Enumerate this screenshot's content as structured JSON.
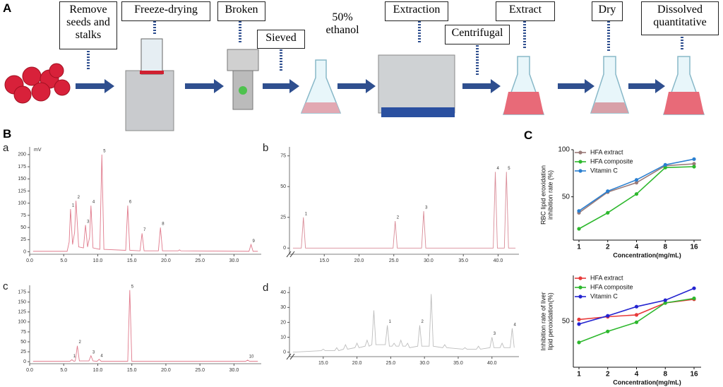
{
  "panel_labels": [
    "A",
    "B",
    "C"
  ],
  "workflow": {
    "steps": [
      "Remove seeds and stalks",
      "Freeze-drying",
      "Broken",
      "Sieved",
      "50% ethanol",
      "Extraction",
      "Centrifugal",
      "Extract",
      "Dry",
      "Dissolved quantitative"
    ]
  },
  "chart_data": [
    {
      "type": "line",
      "panel": "a",
      "y_unit": "mV",
      "x": [
        0.5,
        5.5,
        5.8,
        6.0,
        6.3,
        6.6,
        6.8,
        7.2,
        7.9,
        8.2,
        8.5,
        8.8,
        9.0,
        9.3,
        10.3,
        10.6,
        10.9,
        14.1,
        14.4,
        14.7,
        16.2,
        16.5,
        16.8,
        18.9,
        19.2,
        19.5,
        21.8,
        22.0,
        22.2,
        32.2,
        32.5,
        32.8,
        33.5
      ],
      "series": [
        {
          "color": "#e07a8c",
          "values": [
            1,
            1,
            20,
            88,
            15,
            40,
            105,
            10,
            8,
            55,
            10,
            30,
            95,
            8,
            5,
            200,
            5,
            3,
            95,
            3,
            2,
            38,
            2,
            2,
            50,
            2,
            2,
            4,
            2,
            1,
            15,
            1,
            1
          ]
        }
      ],
      "xlim": [
        0,
        34
      ],
      "xticks": [
        {
          "value": 0,
          "label": "0.0"
        },
        {
          "value": 5,
          "label": "5.0"
        },
        {
          "value": 10,
          "label": "10.0"
        },
        {
          "value": 15,
          "label": "15.0"
        },
        {
          "value": 20,
          "label": "20.0"
        },
        {
          "value": 25,
          "label": "25.0"
        },
        {
          "value": 30,
          "label": "30.0"
        }
      ],
      "ylim": [
        -5,
        210
      ],
      "yticks": [
        0,
        25,
        50,
        75,
        100,
        125,
        150,
        175,
        200
      ],
      "annotations": [
        {
          "x": 6.0,
          "y": 88,
          "text": "1"
        },
        {
          "x": 6.8,
          "y": 105,
          "text": "2"
        },
        {
          "x": 8.2,
          "y": 55,
          "text": "3"
        },
        {
          "x": 9.0,
          "y": 95,
          "text": "4"
        },
        {
          "x": 10.6,
          "y": 200,
          "text": "5"
        },
        {
          "x": 14.4,
          "y": 95,
          "text": "6"
        },
        {
          "x": 16.5,
          "y": 38,
          "text": "7"
        },
        {
          "x": 19.2,
          "y": 50,
          "text": "8"
        },
        {
          "x": 32.5,
          "y": 15,
          "text": "9"
        }
      ]
    },
    {
      "type": "line",
      "panel": "b",
      "axis_break": true,
      "x": [
        10.5,
        11.7,
        12.0,
        12.3,
        24.9,
        25.2,
        25.5,
        29.0,
        29.3,
        29.6,
        39.3,
        39.6,
        39.9,
        40.9,
        41.2,
        41.5,
        42.5
      ],
      "series": [
        {
          "color": "#d98c98",
          "values": [
            0,
            0,
            25,
            0,
            0,
            22,
            0,
            0,
            30,
            0,
            0,
            62,
            0,
            0,
            62,
            0,
            0
          ]
        }
      ],
      "xlim": [
        10,
        43
      ],
      "xticks": [
        {
          "value": 15,
          "label": "15.0"
        },
        {
          "value": 20,
          "label": "20.0"
        },
        {
          "value": 25,
          "label": "25.0"
        },
        {
          "value": 30,
          "label": "30.0"
        },
        {
          "value": 35,
          "label": "35.0"
        },
        {
          "value": 40,
          "label": "40.0"
        }
      ],
      "ylim": [
        -5,
        80
      ],
      "yticks": [
        0,
        25,
        50,
        75
      ],
      "annotations": [
        {
          "x": 12.0,
          "y": 25,
          "text": "1"
        },
        {
          "x": 25.2,
          "y": 22,
          "text": "2"
        },
        {
          "x": 29.3,
          "y": 30,
          "text": "3"
        },
        {
          "x": 39.6,
          "y": 62,
          "text": "4"
        },
        {
          "x": 41.2,
          "y": 62,
          "text": "5"
        }
      ]
    },
    {
      "type": "line",
      "panel": "c",
      "x": [
        0.5,
        5.9,
        6.2,
        6.5,
        6.7,
        7.0,
        7.3,
        8.7,
        9.0,
        9.3,
        9.9,
        10.2,
        10.5,
        14.4,
        14.7,
        15.0,
        31.7,
        32.0,
        32.3,
        33.5
      ],
      "series": [
        {
          "color": "#e07a8c",
          "values": [
            1,
            1,
            5,
            1,
            2,
            40,
            2,
            2,
            15,
            2,
            1,
            6,
            1,
            1,
            180,
            1,
            1,
            4,
            1,
            1
          ]
        }
      ],
      "xlim": [
        0,
        34
      ],
      "xticks": [
        {
          "value": 0,
          "label": "0.0"
        },
        {
          "value": 5,
          "label": "5.0"
        },
        {
          "value": 10,
          "label": "10.0"
        },
        {
          "value": 15,
          "label": "15.0"
        },
        {
          "value": 20,
          "label": "20.0"
        },
        {
          "value": 25,
          "label": "25.0"
        },
        {
          "value": 30,
          "label": "30.0"
        }
      ],
      "ylim": [
        -5,
        185
      ],
      "yticks": [
        0,
        25,
        50,
        75,
        100,
        125,
        150,
        175
      ],
      "annotations": [
        {
          "x": 6.2,
          "y": 5,
          "text": "1"
        },
        {
          "x": 7.0,
          "y": 40,
          "text": "2"
        },
        {
          "x": 9.0,
          "y": 15,
          "text": "3"
        },
        {
          "x": 10.2,
          "y": 6,
          "text": "4"
        },
        {
          "x": 14.7,
          "y": 180,
          "text": "5"
        },
        {
          "x": 32.0,
          "y": 4,
          "text": "10"
        }
      ]
    },
    {
      "type": "line",
      "panel": "d",
      "axis_break": true,
      "x": [
        10.5,
        14.7,
        15,
        15.3,
        16.7,
        17,
        17.3,
        18,
        18.3,
        18.6,
        19.7,
        20,
        20.3,
        21.2,
        21.5,
        21.8,
        22.2,
        22.5,
        22.8,
        24.2,
        24.5,
        24.8,
        25.2,
        25.5,
        25.8,
        26.2,
        26.5,
        26.8,
        27.2,
        27.5,
        27.8,
        29.0,
        29.3,
        29.6,
        30.7,
        31,
        31.3,
        32.7,
        33,
        33.3,
        35.7,
        36,
        36.3,
        37.7,
        38,
        38.3,
        39.7,
        40,
        40.3,
        41.2,
        41.5,
        41.8,
        42.7,
        43,
        43.3
      ],
      "series": [
        {
          "color": "#bdbdbd",
          "values": [
            0,
            1,
            2,
            1,
            1,
            3,
            1,
            2,
            5,
            2,
            3,
            6,
            3,
            4,
            8,
            4,
            5,
            28,
            5,
            5,
            18,
            4,
            4,
            6,
            4,
            4,
            8,
            4,
            4,
            6,
            3,
            4,
            18,
            4,
            4,
            39,
            4,
            3,
            5,
            3,
            2,
            3,
            2,
            2,
            4,
            2,
            3,
            10,
            3,
            3,
            6,
            3,
            3,
            16,
            3
          ]
        }
      ],
      "xlim": [
        10,
        44
      ],
      "xticks": [
        {
          "value": 15,
          "label": "15.0"
        },
        {
          "value": 20,
          "label": "20.0"
        },
        {
          "value": 25,
          "label": "25.0"
        },
        {
          "value": 30,
          "label": "30.0"
        },
        {
          "value": 35,
          "label": "35.0"
        },
        {
          "value": 40,
          "label": "40.0"
        }
      ],
      "ylim": [
        -3,
        42
      ],
      "yticks": [
        0,
        10,
        20,
        30,
        40
      ],
      "annotations": [
        {
          "x": 24.5,
          "y": 18,
          "text": "1"
        },
        {
          "x": 29.3,
          "y": 18,
          "text": "2"
        },
        {
          "x": 40,
          "y": 10,
          "text": "3"
        },
        {
          "x": 43,
          "y": 16,
          "text": "4"
        }
      ]
    },
    {
      "type": "line",
      "categories": [
        "1",
        "2",
        "4",
        "8",
        "16"
      ],
      "xlabel": "Concentration(mg/mL)",
      "ylabel": [
        "RBC lipid eroxidation",
        "inhibition rate (%)"
      ],
      "series": [
        {
          "name": "HFA extract",
          "color": "#9a7a78",
          "values": [
            33,
            55,
            65,
            83,
            85
          ]
        },
        {
          "name": "HFA composite",
          "color": "#2db82d",
          "values": [
            16,
            33,
            53,
            81,
            82
          ]
        },
        {
          "name": "Vitamin C",
          "color": "#2a7fd0",
          "values": [
            35,
            56,
            68,
            84,
            90
          ]
        }
      ],
      "ylim": [
        4,
        100
      ],
      "yticks": [
        50,
        100
      ],
      "legend": "upper left"
    },
    {
      "type": "line",
      "categories": [
        "1",
        "2",
        "4",
        "8",
        "16"
      ],
      "xlabel": "Concentration(mg/mL)",
      "ylabel": [
        "Inhibition rate of liver",
        "lipid peroxidation(%)"
      ],
      "series": [
        {
          "name": "HFA extract",
          "color": "#e83a3a",
          "values": [
            52,
            55,
            57,
            70,
            74
          ]
        },
        {
          "name": "HFA composite",
          "color": "#2db82d",
          "values": [
            27,
            39,
            49,
            70,
            75
          ]
        },
        {
          "name": "Vitamin C",
          "color": "#2424d0",
          "values": [
            47,
            56,
            66,
            73,
            86
          ]
        }
      ],
      "ylim": [
        0,
        100
      ],
      "yticks": [
        50
      ],
      "legend": "upper left"
    }
  ]
}
